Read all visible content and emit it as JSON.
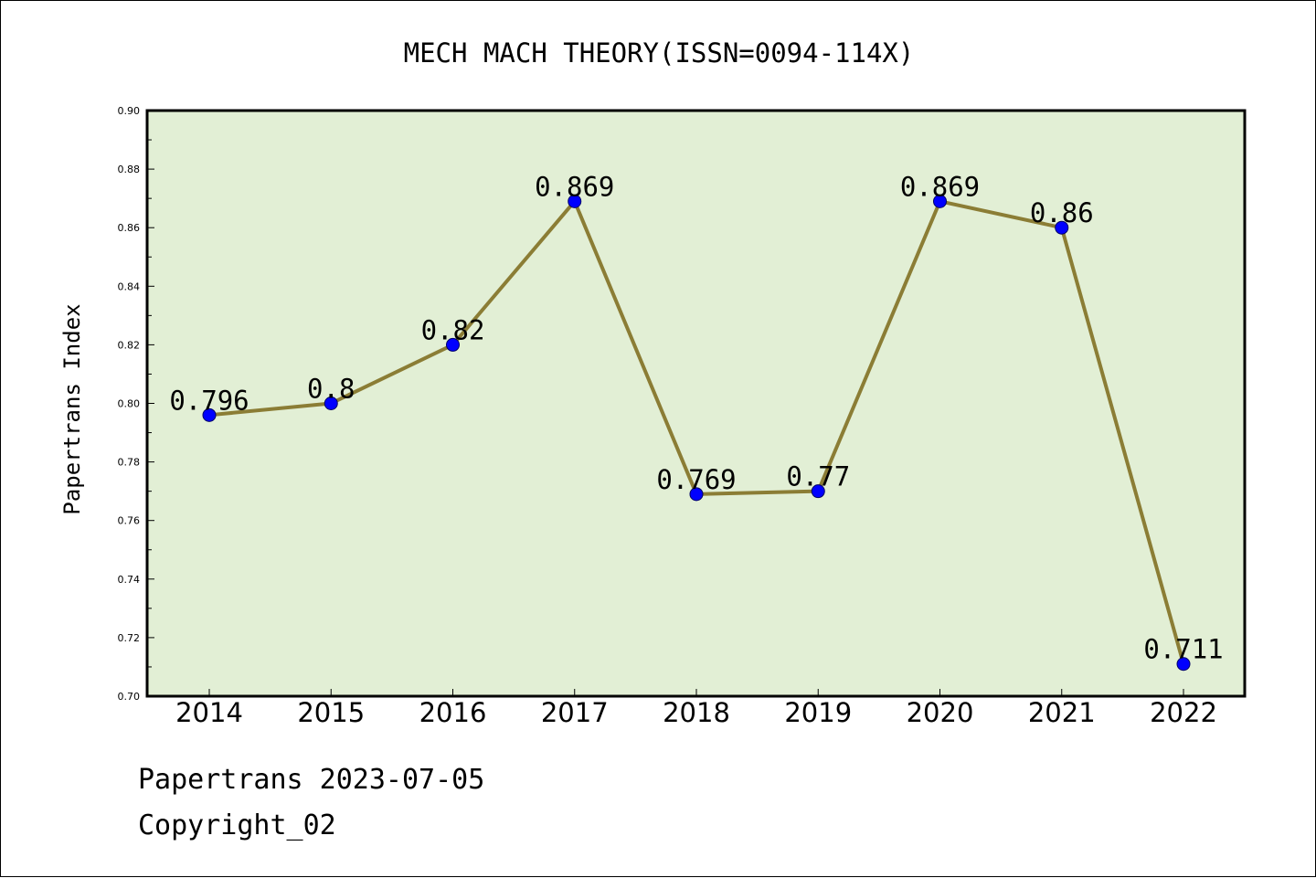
{
  "footer": {
    "line1": "Papertrans 2023-07-05",
    "line2": "Copyright_02"
  },
  "chart_data": {
    "type": "line",
    "title": "MECH MACH THEORY(ISSN=0094-114X)",
    "xlabel": "",
    "ylabel": "Papertrans Index",
    "categories": [
      "2014",
      "2015",
      "2016",
      "2017",
      "2018",
      "2019",
      "2020",
      "2021",
      "2022"
    ],
    "series": [
      {
        "values": [
          0.796,
          0.8,
          0.82,
          0.869,
          0.769,
          0.77,
          0.869,
          0.86,
          0.711
        ],
        "labels": [
          "0.796",
          "0.8",
          "0.82",
          "0.869",
          "0.769",
          "0.77",
          "0.869",
          "0.86",
          "0.711"
        ]
      }
    ],
    "ylim": [
      0.7,
      0.9
    ],
    "yticks": [
      "0.70",
      "0.72",
      "0.74",
      "0.76",
      "0.78",
      "0.80",
      "0.82",
      "0.84",
      "0.86",
      "0.88",
      "0.90"
    ],
    "grid": false,
    "colors": {
      "plot_background": "#e2efd5",
      "line": "#8b7d35",
      "marker": "#0000ff",
      "axes": "#000000"
    }
  }
}
